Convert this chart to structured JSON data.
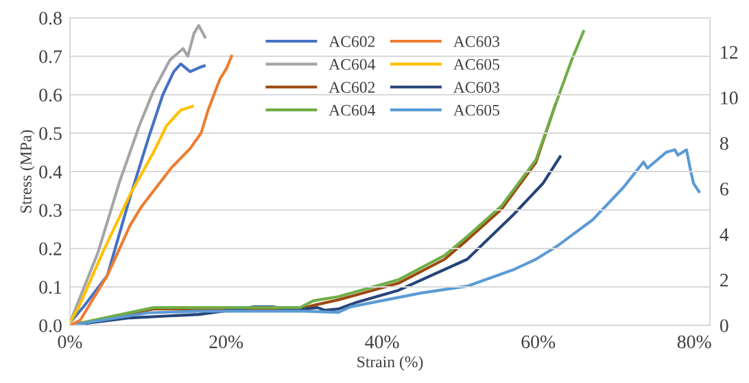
{
  "chart_data": {
    "type": "line",
    "xlabel": "Strain (%)",
    "ylabel": "Stress (MPa)",
    "xlim": [
      0,
      82
    ],
    "xticks": [
      {
        "value": 0,
        "label": "0%"
      },
      {
        "value": 20,
        "label": "20%"
      },
      {
        "value": 40,
        "label": "40%"
      },
      {
        "value": 60,
        "label": "60%"
      },
      {
        "value": 80,
        "label": "80%"
      }
    ],
    "ylim": [
      0,
      0.8
    ],
    "yticks": [
      {
        "value": 0,
        "label": "0.0"
      },
      0.1,
      0.2,
      0.3,
      0.4,
      0.5,
      0.6,
      0.7,
      0.8
    ],
    "y2lim": [
      0,
      13.5
    ],
    "y2ticks": [
      0,
      2,
      4,
      6,
      8,
      10,
      12
    ],
    "grid": "y",
    "legend": "top",
    "marker": "none",
    "line_style": "solid",
    "series": [
      {
        "name": "AC602",
        "color": "#4472c4",
        "x": [
          0,
          1.8,
          4.8,
          7.5,
          10.1,
          11.9,
          13.3,
          14.2,
          15.4,
          16.5,
          17.2
        ],
        "values": [
          0.007,
          0.05,
          0.13,
          0.32,
          0.49,
          0.6,
          0.66,
          0.68,
          0.66,
          0.67,
          0.675
        ]
      },
      {
        "name": "AC603",
        "color": "#ed7d31",
        "x": [
          0,
          1.3,
          4.8,
          7.7,
          9.2,
          13.0,
          15.4,
          16.8,
          17.7,
          19.2,
          20.1,
          20.7
        ],
        "values": [
          0.0,
          0.013,
          0.13,
          0.26,
          0.31,
          0.41,
          0.46,
          0.5,
          0.56,
          0.64,
          0.67,
          0.7
        ]
      },
      {
        "name": "AC604",
        "color": "#a5a5a5",
        "x": [
          0,
          3.6,
          6.3,
          8.9,
          10.7,
          12.8,
          14.5,
          15.1,
          15.9,
          16.5,
          17.3
        ],
        "values": [
          0.007,
          0.19,
          0.37,
          0.52,
          0.61,
          0.69,
          0.72,
          0.7,
          0.76,
          0.78,
          0.75
        ]
      },
      {
        "name": "AC605",
        "color": "#ffc000",
        "x": [
          0,
          1.3,
          4.2,
          7.7,
          10.7,
          12.4,
          14.2,
          15.7
        ],
        "values": [
          0.007,
          0.055,
          0.19,
          0.34,
          0.45,
          0.52,
          0.56,
          0.57
        ]
      },
      {
        "name": "AC602",
        "color": "#9e480e",
        "axis": "y2",
        "x": [
          0,
          10.7,
          29.5,
          31.5,
          34.4,
          42.1,
          48,
          50.9,
          55.3,
          59.7,
          62.2
        ],
        "values": [
          0,
          0.72,
          0.72,
          0.9,
          1.12,
          1.85,
          2.9,
          3.75,
          5.1,
          7.15,
          9.7
        ]
      },
      {
        "name": "AC603",
        "color": "#264478",
        "axis": "y2",
        "x": [
          0,
          7.7,
          16.5,
          23.6,
          26,
          28.9,
          31.7,
          32.7,
          34.4,
          36.8,
          42.1,
          50.9,
          56.8,
          60.6,
          62.8
        ],
        "values": [
          0,
          0.33,
          0.48,
          0.81,
          0.81,
          0.66,
          0.78,
          0.66,
          0.72,
          1.02,
          1.54,
          2.9,
          4.85,
          6.23,
          7.4
        ]
      },
      {
        "name": "AC604",
        "color": "#70ad47",
        "axis": "y2",
        "x": [
          0,
          10.7,
          29.5,
          31.2,
          34.4,
          42.1,
          48,
          50.9,
          55.3,
          59.7,
          62.6,
          64.3,
          65.8
        ],
        "values": [
          0,
          0.78,
          0.78,
          1.08,
          1.26,
          2.0,
          3.07,
          3.9,
          5.24,
          7.26,
          10.06,
          11.66,
          12.9
        ]
      },
      {
        "name": "AC605",
        "color": "#5b9bd5",
        "axis": "y2",
        "x": [
          0,
          10,
          16.5,
          30,
          34.4,
          35.9,
          45,
          50.9,
          56.8,
          59.7,
          62.6,
          67,
          70.9,
          73.5,
          74,
          76.4,
          77.5,
          77.9,
          79,
          79.5,
          79.9,
          80.6
        ],
        "values": [
          0,
          0.55,
          0.62,
          0.62,
          0.57,
          0.81,
          1.42,
          1.72,
          2.44,
          2.9,
          3.52,
          4.64,
          6.05,
          7.17,
          6.9,
          7.6,
          7.71,
          7.47,
          7.71,
          6.84,
          6.23,
          5.87
        ]
      }
    ]
  }
}
